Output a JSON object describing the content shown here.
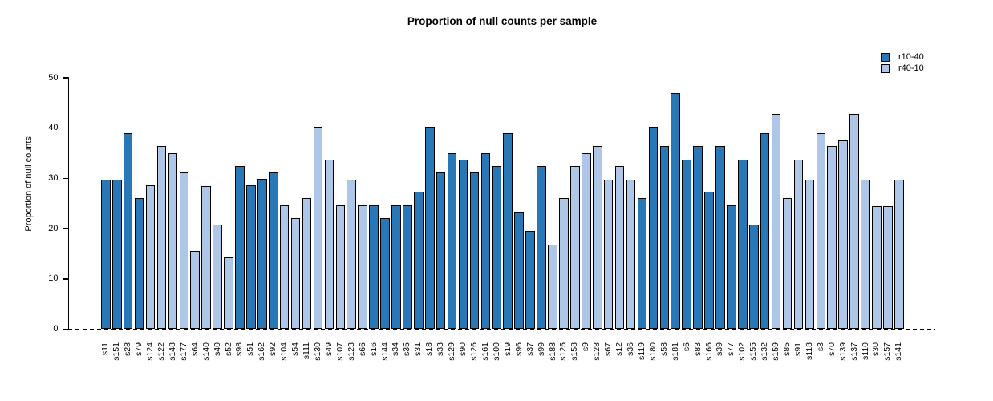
{
  "chart_data": {
    "type": "bar",
    "title": "Proportion of null counts per sample",
    "xlabel": "",
    "ylabel": "Proportion of null counts",
    "ylim": [
      0,
      50
    ],
    "yticks": [
      0,
      10,
      20,
      30,
      40,
      50
    ],
    "grid": false,
    "legend_position": "top-right",
    "legend": [
      {
        "name": "r10-40",
        "color": "#2878b8"
      },
      {
        "name": "r40-10",
        "color": "#aec7e8"
      }
    ],
    "baseline": {
      "value": 0,
      "style": "dashed"
    },
    "bars": [
      {
        "label": "s11",
        "value": 29.8,
        "series": "r10-40"
      },
      {
        "label": "s151",
        "value": 29.8,
        "series": "r10-40"
      },
      {
        "label": "s28",
        "value": 39.0,
        "series": "r10-40"
      },
      {
        "label": "s79",
        "value": 26.0,
        "series": "r10-40"
      },
      {
        "label": "s124",
        "value": 28.6,
        "series": "r40-10"
      },
      {
        "label": "s122",
        "value": 36.4,
        "series": "r40-10"
      },
      {
        "label": "s148",
        "value": 35.0,
        "series": "r40-10"
      },
      {
        "label": "s177",
        "value": 31.2,
        "series": "r40-10"
      },
      {
        "label": "s64",
        "value": 15.6,
        "series": "r40-10"
      },
      {
        "label": "s140",
        "value": 28.5,
        "series": "r40-10"
      },
      {
        "label": "s40",
        "value": 20.8,
        "series": "r40-10"
      },
      {
        "label": "s52",
        "value": 14.3,
        "series": "r40-10"
      },
      {
        "label": "s98",
        "value": 32.5,
        "series": "r10-40"
      },
      {
        "label": "s51",
        "value": 28.6,
        "series": "r10-40"
      },
      {
        "label": "s162",
        "value": 29.9,
        "series": "r10-40"
      },
      {
        "label": "s92",
        "value": 31.2,
        "series": "r10-40"
      },
      {
        "label": "s104",
        "value": 24.6,
        "series": "r40-10"
      },
      {
        "label": "s54",
        "value": 22.1,
        "series": "r40-10"
      },
      {
        "label": "s111",
        "value": 26.1,
        "series": "r40-10"
      },
      {
        "label": "s130",
        "value": 40.2,
        "series": "r40-10"
      },
      {
        "label": "s49",
        "value": 33.8,
        "series": "r40-10"
      },
      {
        "label": "s107",
        "value": 24.6,
        "series": "r40-10"
      },
      {
        "label": "s123",
        "value": 29.8,
        "series": "r40-10"
      },
      {
        "label": "s66",
        "value": 24.6,
        "series": "r40-10"
      },
      {
        "label": "s16",
        "value": 24.6,
        "series": "r10-40"
      },
      {
        "label": "s144",
        "value": 22.1,
        "series": "r10-40"
      },
      {
        "label": "s34",
        "value": 24.6,
        "series": "r10-40"
      },
      {
        "label": "s35",
        "value": 24.6,
        "series": "r10-40"
      },
      {
        "label": "s31",
        "value": 27.3,
        "series": "r10-40"
      },
      {
        "label": "s18",
        "value": 40.2,
        "series": "r10-40"
      },
      {
        "label": "s33",
        "value": 31.2,
        "series": "r10-40"
      },
      {
        "label": "s129",
        "value": 35.0,
        "series": "r10-40"
      },
      {
        "label": "s90",
        "value": 33.8,
        "series": "r10-40"
      },
      {
        "label": "s126",
        "value": 31.2,
        "series": "r10-40"
      },
      {
        "label": "s161",
        "value": 35.0,
        "series": "r10-40"
      },
      {
        "label": "s100",
        "value": 32.5,
        "series": "r10-40"
      },
      {
        "label": "s19",
        "value": 39.0,
        "series": "r10-40"
      },
      {
        "label": "s96",
        "value": 23.4,
        "series": "r10-40"
      },
      {
        "label": "s37",
        "value": 19.5,
        "series": "r10-40"
      },
      {
        "label": "s99",
        "value": 32.5,
        "series": "r10-40"
      },
      {
        "label": "s188",
        "value": 16.9,
        "series": "r40-10"
      },
      {
        "label": "s125",
        "value": 26.0,
        "series": "r40-10"
      },
      {
        "label": "s158",
        "value": 32.5,
        "series": "r40-10"
      },
      {
        "label": "s9",
        "value": 35.0,
        "series": "r40-10"
      },
      {
        "label": "s128",
        "value": 36.4,
        "series": "r40-10"
      },
      {
        "label": "s67",
        "value": 29.8,
        "series": "r40-10"
      },
      {
        "label": "s12",
        "value": 32.5,
        "series": "r40-10"
      },
      {
        "label": "s36",
        "value": 29.8,
        "series": "r40-10"
      },
      {
        "label": "s119",
        "value": 26.0,
        "series": "r10-40"
      },
      {
        "label": "s180",
        "value": 40.2,
        "series": "r10-40"
      },
      {
        "label": "s58",
        "value": 36.4,
        "series": "r10-40"
      },
      {
        "label": "s181",
        "value": 46.9,
        "series": "r10-40"
      },
      {
        "label": "s6",
        "value": 33.8,
        "series": "r10-40"
      },
      {
        "label": "s83",
        "value": 36.4,
        "series": "r10-40"
      },
      {
        "label": "s166",
        "value": 27.3,
        "series": "r10-40"
      },
      {
        "label": "s39",
        "value": 36.4,
        "series": "r10-40"
      },
      {
        "label": "s77",
        "value": 24.6,
        "series": "r10-40"
      },
      {
        "label": "s102",
        "value": 33.8,
        "series": "r10-40"
      },
      {
        "label": "s155",
        "value": 20.8,
        "series": "r10-40"
      },
      {
        "label": "s132",
        "value": 39.0,
        "series": "r10-40"
      },
      {
        "label": "s159",
        "value": 42.8,
        "series": "r40-10"
      },
      {
        "label": "s85",
        "value": 26.0,
        "series": "r40-10"
      },
      {
        "label": "s91",
        "value": 33.8,
        "series": "r40-10"
      },
      {
        "label": "s118",
        "value": 29.8,
        "series": "r40-10"
      },
      {
        "label": "s3",
        "value": 39.0,
        "series": "r40-10"
      },
      {
        "label": "s70",
        "value": 36.4,
        "series": "r40-10"
      },
      {
        "label": "s139",
        "value": 37.6,
        "series": "r40-10"
      },
      {
        "label": "s137",
        "value": 42.8,
        "series": "r40-10"
      },
      {
        "label": "s110",
        "value": 29.8,
        "series": "r40-10"
      },
      {
        "label": "s30",
        "value": 24.5,
        "series": "r40-10"
      },
      {
        "label": "s157",
        "value": 24.5,
        "series": "r40-10"
      },
      {
        "label": "s141",
        "value": 29.8,
        "series": "r40-10"
      }
    ]
  },
  "colors": {
    "series_dark": "#2878b8",
    "series_light": "#aec7e8",
    "axis": "#000000",
    "background": "#ffffff"
  }
}
